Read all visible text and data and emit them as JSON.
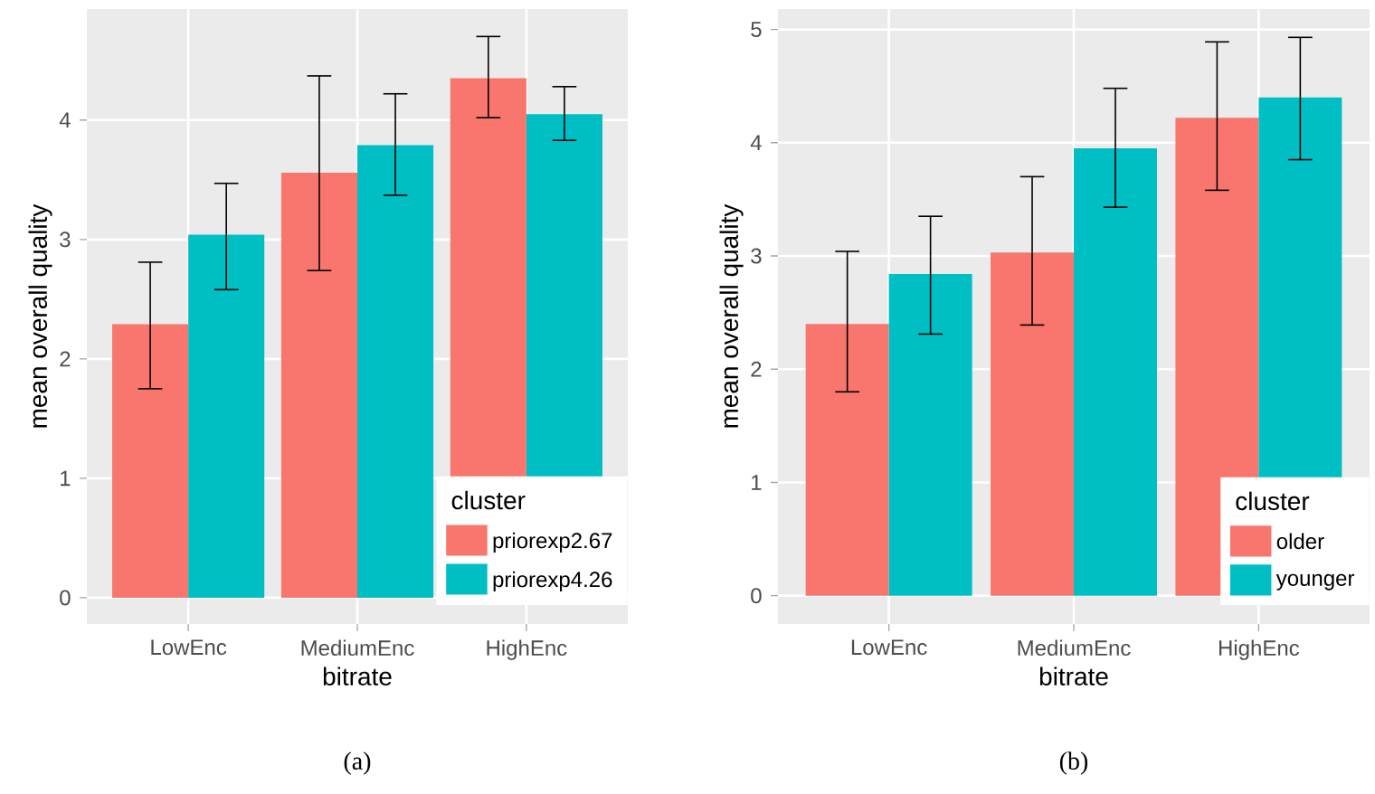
{
  "chart_data": [
    {
      "type": "bar",
      "categories": [
        "LowEnc",
        "MediumEnc",
        "HighEnc"
      ],
      "xlabel": "bitrate",
      "ylabel": "mean overall quality",
      "legend_title": "cluster",
      "series": [
        {
          "name": "priorexp2.67",
          "color": "#f8766d",
          "values": [
            2.29,
            3.56,
            4.35
          ],
          "errors": [
            [
              1.75,
              2.81
            ],
            [
              2.74,
              4.37
            ],
            [
              4.02,
              4.7
            ]
          ]
        },
        {
          "name": "priorexp4.26",
          "color": "#00bfc4",
          "values": [
            3.04,
            3.79,
            4.05
          ],
          "errors": [
            [
              2.58,
              3.47
            ],
            [
              3.37,
              4.22
            ],
            [
              3.83,
              4.28
            ]
          ]
        }
      ],
      "ylim": [
        -0.22,
        4.93
      ],
      "yticks": [
        0,
        1,
        2,
        3,
        4
      ],
      "grid": true,
      "legend": "bottom right",
      "annotations": [
        "(a)"
      ]
    },
    {
      "type": "bar",
      "categories": [
        "LowEnc",
        "MediumEnc",
        "HighEnc"
      ],
      "xlabel": "bitrate",
      "ylabel": "mean overall quality",
      "legend_title": "cluster",
      "series": [
        {
          "name": "older",
          "color": "#f8766d",
          "values": [
            2.4,
            3.03,
            4.22
          ],
          "errors": [
            [
              1.8,
              3.04
            ],
            [
              2.39,
              3.7
            ],
            [
              3.58,
              4.89
            ]
          ]
        },
        {
          "name": "younger",
          "color": "#00bfc4",
          "values": [
            2.84,
            3.95,
            4.4
          ],
          "errors": [
            [
              2.31,
              3.35
            ],
            [
              3.43,
              4.48
            ],
            [
              3.85,
              4.93
            ]
          ]
        }
      ],
      "ylim": [
        -0.25,
        5.18
      ],
      "yticks": [
        0,
        1,
        2,
        3,
        4,
        5
      ],
      "grid": true,
      "legend": "bottom right",
      "annotations": [
        "(b)"
      ]
    }
  ]
}
